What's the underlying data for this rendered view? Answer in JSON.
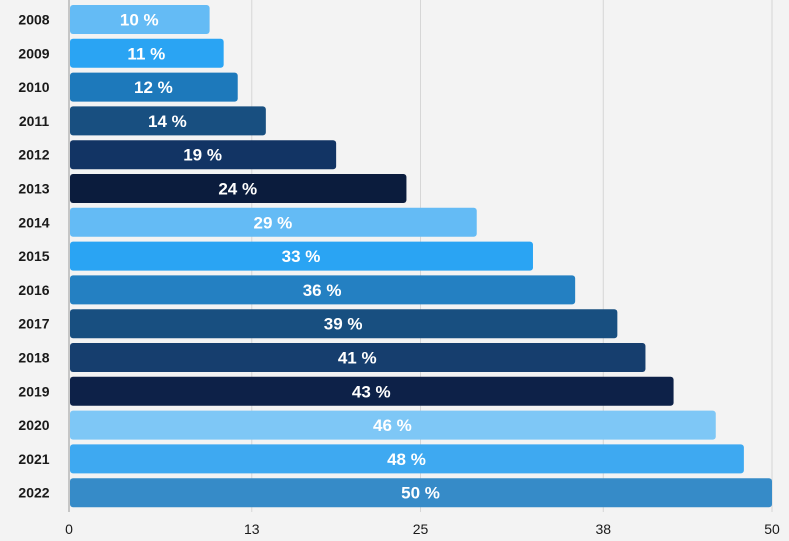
{
  "chart_data": {
    "type": "bar",
    "orientation": "horizontal",
    "categories": [
      "2008",
      "2009",
      "2010",
      "2011",
      "2012",
      "2013",
      "2014",
      "2015",
      "2016",
      "2017",
      "2018",
      "2019",
      "2020",
      "2021",
      "2022"
    ],
    "values": [
      10,
      11,
      12,
      14,
      19,
      24,
      29,
      33,
      36,
      39,
      41,
      43,
      46,
      48,
      50
    ],
    "value_labels": [
      "10 %",
      "11 %",
      "12 %",
      "14 %",
      "19 %",
      "24 %",
      "29 %",
      "33 %",
      "36 %",
      "39 %",
      "41 %",
      "43 %",
      "46 %",
      "48 %",
      "50 %"
    ],
    "x_ticks": [
      0,
      13,
      25,
      38,
      50
    ],
    "xlim": [
      0,
      50
    ],
    "grid": true,
    "colors": [
      "#64bbf5",
      "#2aa4f3",
      "#1d79bb",
      "#184f80",
      "#123464",
      "#0b1c3d",
      "#64bbf5",
      "#2aa4f3",
      "#2480c2",
      "#184f80",
      "#163e6e",
      "#0d2148",
      "#7ec7f6",
      "#3ea9f1",
      "#368bc8"
    ],
    "background": "#f3f3f3",
    "gridline_color": "#d6d6d6"
  }
}
